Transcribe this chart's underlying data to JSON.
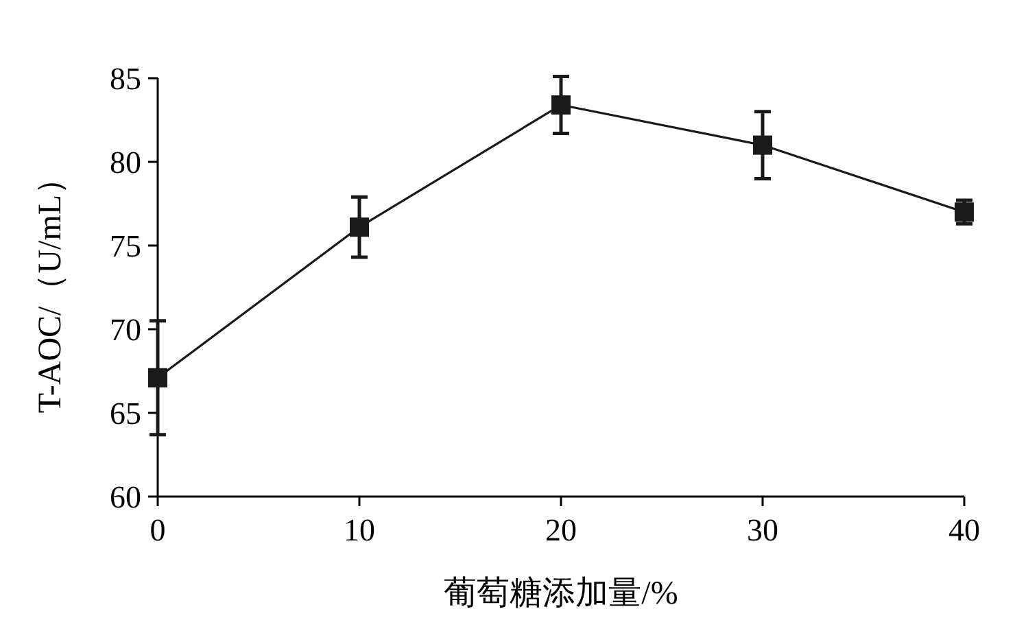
{
  "chart_data": {
    "type": "line",
    "xlabel": "葡萄糖添加量/%",
    "ylabel": "T-AOC/（U/mL）",
    "x": [
      0,
      10,
      20,
      30,
      40
    ],
    "series": [
      {
        "color": "#1a1a1a",
        "values": [
          67.1,
          76.1,
          83.4,
          81.0,
          77.0
        ],
        "errors": [
          3.4,
          1.8,
          1.7,
          2.0,
          0.7
        ]
      }
    ],
    "xlim": [
      0,
      40
    ],
    "xticks": [
      0,
      10,
      20,
      30,
      40
    ],
    "ylim": [
      60,
      85
    ],
    "yticks": [
      60,
      65,
      70,
      75,
      80,
      85
    ],
    "marker": "square",
    "line_style": "solid"
  }
}
